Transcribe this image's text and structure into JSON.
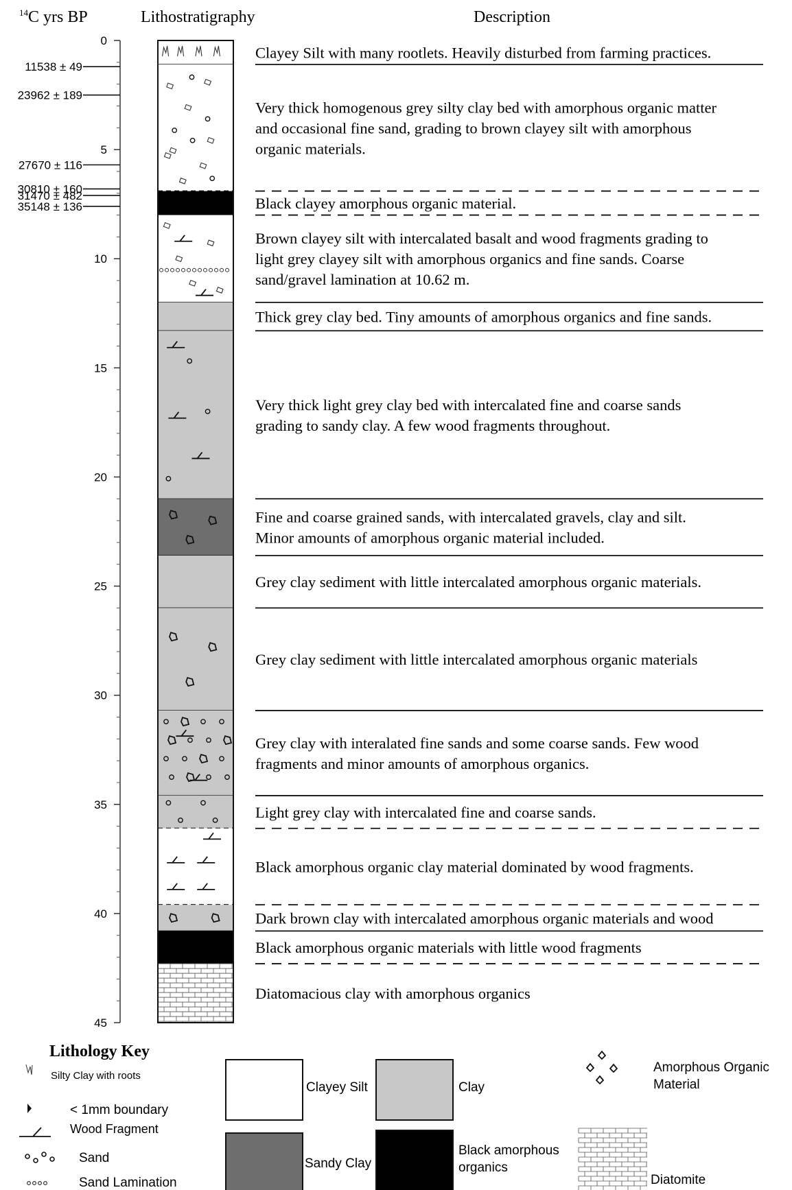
{
  "headers": {
    "c14_sup": "14",
    "c14": "C yrs BP",
    "litho": "Lithostratigraphy",
    "desc": "Description"
  },
  "depth_ticks": [
    "0",
    "5",
    "10",
    "15",
    "20",
    "25",
    "30",
    "35",
    "40",
    "45"
  ],
  "radiocarbon_dates": [
    {
      "label": "11538 ± 49",
      "depth": 1.2
    },
    {
      "label": "23962 ± 189",
      "depth": 2.5
    },
    {
      "label": "27670 ± 116",
      "depth": 5.7
    },
    {
      "label": "30810 ± 160",
      "depth": 6.8
    },
    {
      "label": "31470 ± 482",
      "depth": 7.1
    },
    {
      "label": "35148 ± 136",
      "depth": 7.6
    }
  ],
  "layers": [
    {
      "top": 0.0,
      "bottom": 1.1,
      "fill": "#ffffff",
      "symbol": "roots",
      "lower_boundary": "solid",
      "lines": [
        "Clayey Silt with many rootlets. Heavily disturbed from farming practices."
      ]
    },
    {
      "top": 1.1,
      "bottom": 6.9,
      "fill": "#ffffff",
      "symbol": "organic-sand",
      "lower_boundary": "dashed",
      "lines": [
        "Very thick homogenous grey silty clay bed with amorphous organic matter",
        "and occasional fine sand, grading to brown clayey silt with amorphous",
        "organic materials."
      ]
    },
    {
      "top": 6.9,
      "bottom": 8.0,
      "fill": "#000000",
      "symbol": "none",
      "lower_boundary": "dashed",
      "lines": [
        "Black clayey amorphous organic material."
      ]
    },
    {
      "top": 8.0,
      "bottom": 12.0,
      "fill": "#ffffff",
      "symbol": "wood-organic-lamination",
      "lower_boundary": "solid",
      "lines": [
        "Brown clayey silt with intercalated basalt and wood fragments grading to",
        "light grey clayey silt with amorphous organics and fine sands. Coarse",
        "sand/gravel lamination at 10.62 m."
      ]
    },
    {
      "top": 12.0,
      "bottom": 13.3,
      "fill": "#c8c8c8",
      "symbol": "none",
      "lower_boundary": "solid",
      "lines": [
        "Thick grey clay bed. Tiny amounts of amorphous organics and fine sands."
      ]
    },
    {
      "top": 13.3,
      "bottom": 21.0,
      "fill": "#c8c8c8",
      "symbol": "wood-sand",
      "lower_boundary": "solid",
      "lines": [
        "Very thick light grey clay bed with intercalated fine and coarse sands",
        "grading to sandy clay. A few wood fragments throughout."
      ]
    },
    {
      "top": 21.0,
      "bottom": 23.6,
      "fill": "#6e6e6e",
      "symbol": "organic",
      "lower_boundary": "solid",
      "lines": [
        "Fine and coarse grained sands, with intercalated gravels, clay and silt.",
        "Minor amounts of amorphous organic material included."
      ]
    },
    {
      "top": 23.6,
      "bottom": 26.0,
      "fill": "#c8c8c8",
      "symbol": "none",
      "lower_boundary": "solid",
      "lines": [
        "Grey clay sediment with little intercalated amorphous organic materials."
      ]
    },
    {
      "top": 26.0,
      "bottom": 30.7,
      "fill": "#c8c8c8",
      "symbol": "organic",
      "lower_boundary": "solid",
      "lines": [
        "Grey clay sediment with little intercalated amorphous organic materials"
      ]
    },
    {
      "top": 30.7,
      "bottom": 34.6,
      "fill": "#c8c8c8",
      "symbol": "sand-organic-wood",
      "lower_boundary": "solid",
      "lines": [
        "Grey clay with interalated fine sands and some coarse sands. Few wood",
        "fragments and minor amounts of amorphous organics."
      ]
    },
    {
      "top": 34.6,
      "bottom": 36.1,
      "fill": "#c8c8c8",
      "symbol": "sand",
      "lower_boundary": "dashed",
      "lines": [
        "Light grey clay with intercalated fine and coarse sands."
      ]
    },
    {
      "top": 36.1,
      "bottom": 39.6,
      "fill": "#ffffff",
      "symbol": "wood",
      "lower_boundary": "dashed",
      "lines": [
        "Black amorphous organic clay material dominated by wood fragments."
      ]
    },
    {
      "top": 39.6,
      "bottom": 40.8,
      "fill": "#c8c8c8",
      "symbol": "organic",
      "lower_boundary": "solid",
      "lines": [
        "Dark brown clay with intercalated amorphous organic materials and wood"
      ]
    },
    {
      "top": 40.8,
      "bottom": 42.3,
      "fill": "#000000",
      "symbol": "none",
      "lower_boundary": "dashed",
      "lines": [
        "Black amorphous organic materials with little wood fragments"
      ]
    },
    {
      "top": 42.3,
      "bottom": 45.0,
      "fill": "#ffffff",
      "symbol": "diatomite",
      "lower_boundary": "none",
      "lines": [
        "Diatomacious clay with amorphous organics"
      ]
    }
  ],
  "key": {
    "title": "Lithology Key",
    "roots": "Silty Clay with roots",
    "boundary": "< 1mm boundary",
    "wood": "Wood Fragment",
    "sand": "Sand",
    "sand_lamination": "Sand Lamination",
    "clayey_silt": "Clayey Silt",
    "clay": "Clay",
    "sandy_clay": "Sandy Clay",
    "black_1": "Black amorphous",
    "black_2": "organics",
    "aom_1": "Amorphous Organic",
    "aom_2": "Material",
    "diatomite": "Diatomite"
  }
}
